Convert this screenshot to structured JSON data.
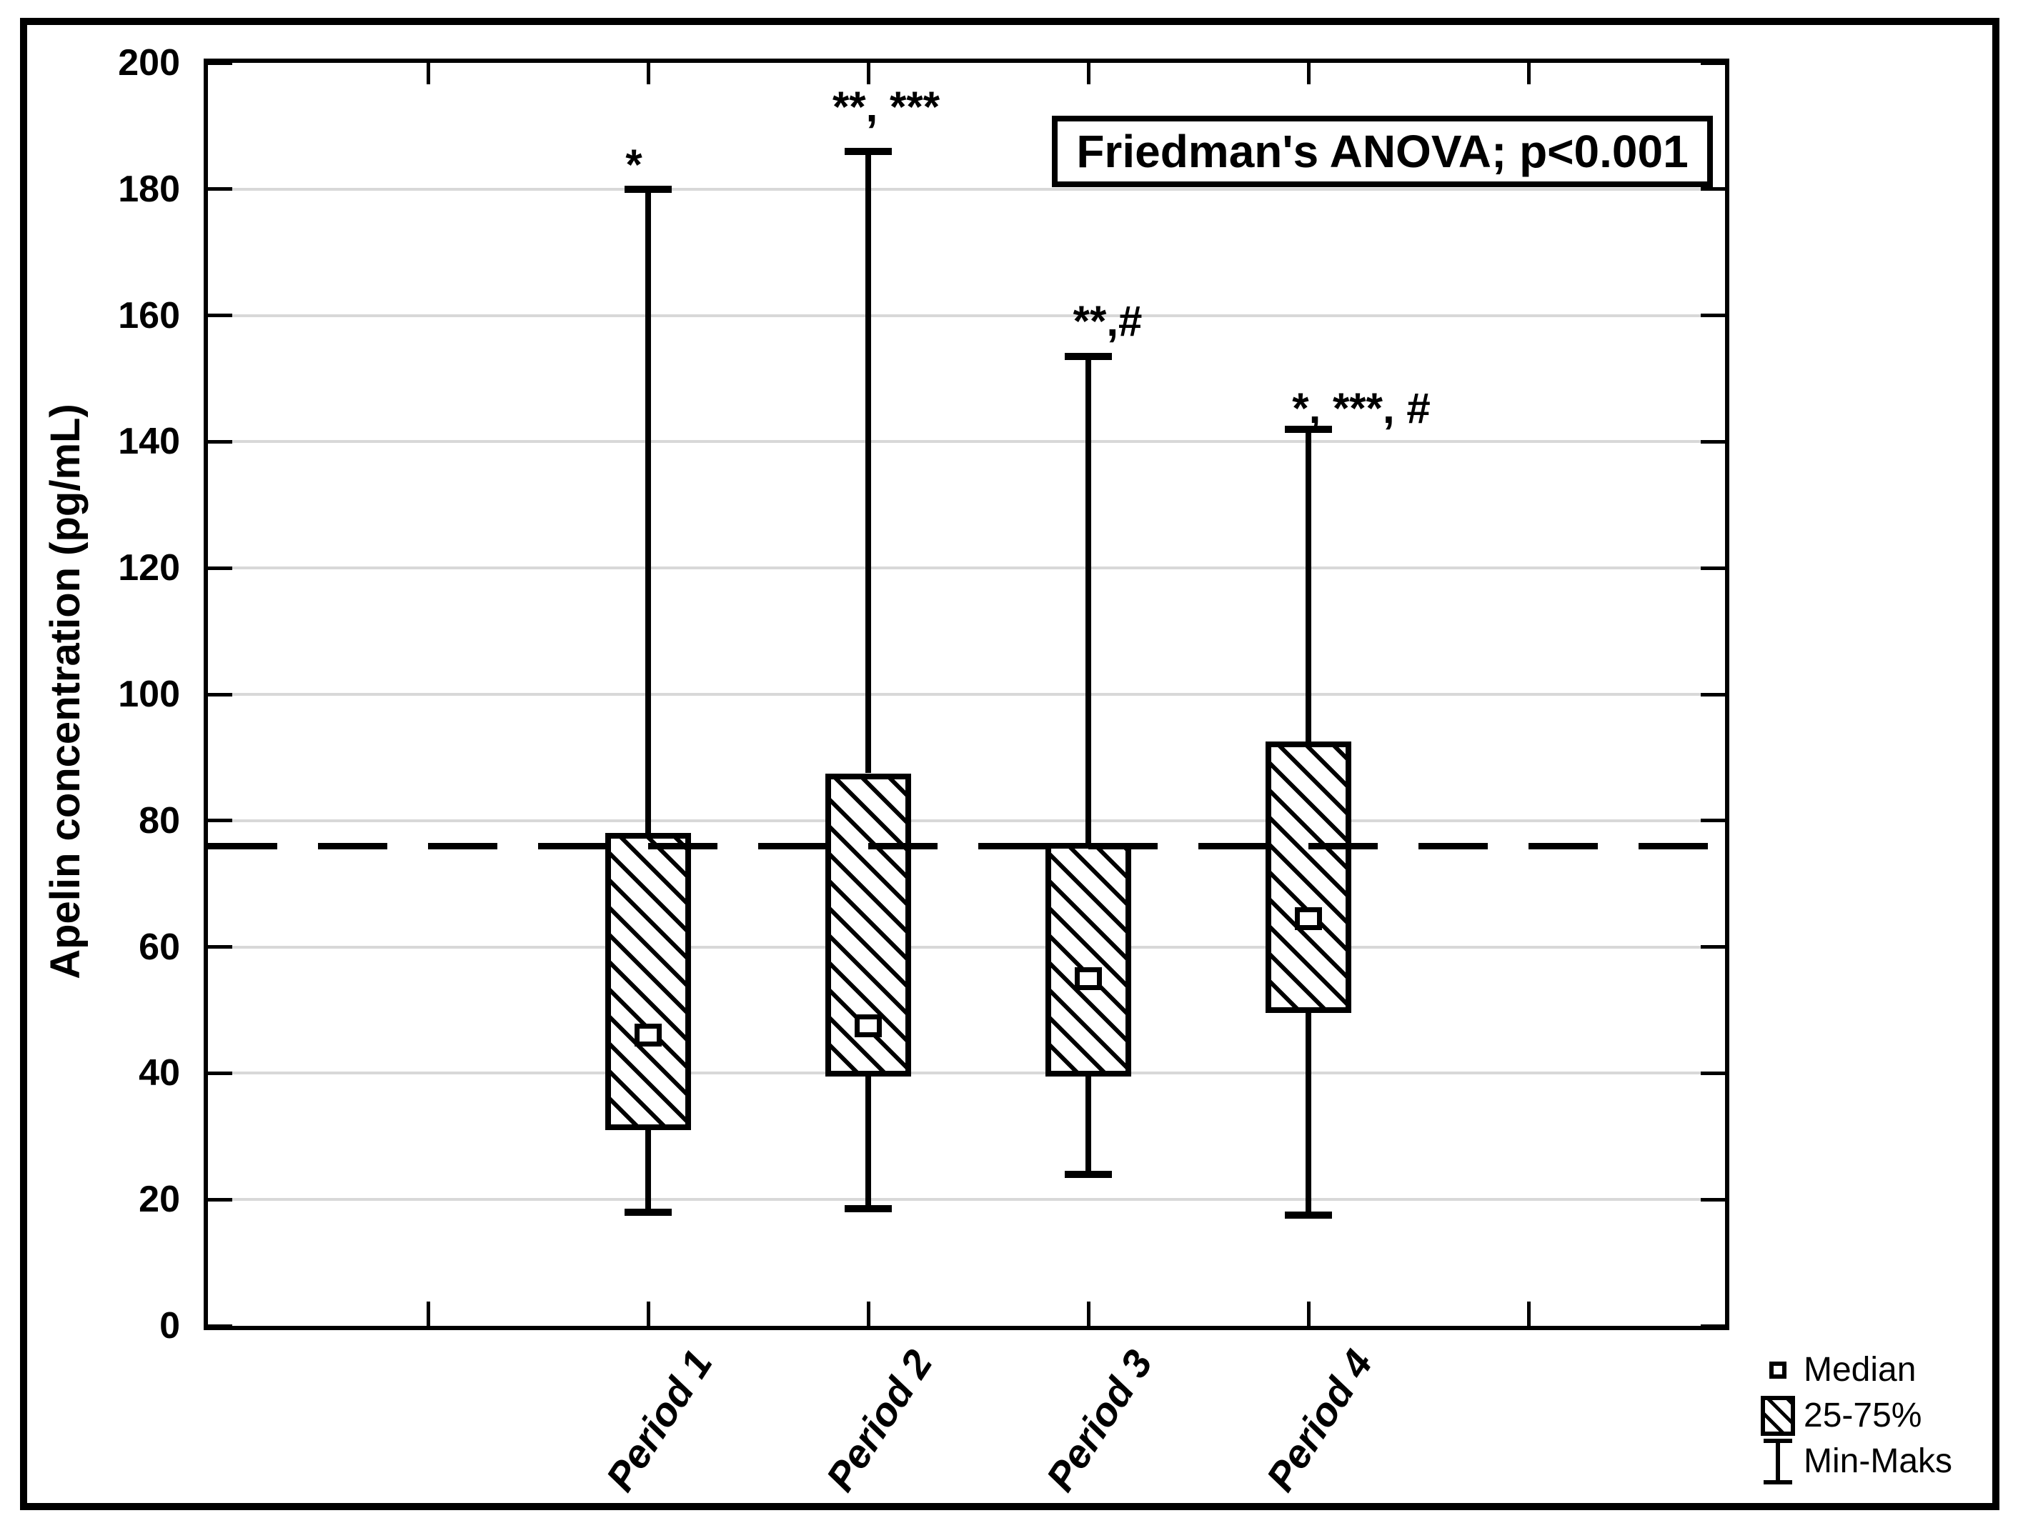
{
  "figure": {
    "stats_box": "Friedman's ANOVA; p<0.001"
  },
  "y_axis": {
    "label": "Apelin concentration (pg/mL)",
    "tick_labels": [
      "0",
      "20",
      "40",
      "60",
      "80",
      "100",
      "120",
      "140",
      "160",
      "180",
      "200"
    ]
  },
  "x_axis": {
    "categories": [
      "Period 1",
      "Period 2",
      "Period 3",
      "Period 4"
    ]
  },
  "legend": {
    "items": [
      {
        "icon": "median-square-icon",
        "label": "Median"
      },
      {
        "icon": "hatched-box-icon",
        "label": "25-75%"
      },
      {
        "icon": "min-max-whisker-icon",
        "label": "Min-Maks"
      }
    ]
  },
  "chart_data": {
    "type": "box",
    "ylabel": "Apelin concentration (pg/mL)",
    "ylim": [
      0,
      200
    ],
    "y_tick_step": 20,
    "grid": true,
    "legend_position": "bottom-right",
    "annotation_box": "Friedman's ANOVA; p<0.001",
    "reference_line": {
      "style": "dashed",
      "value": 76
    },
    "categories": [
      "Period 1",
      "Period 2",
      "Period 3",
      "Period 4"
    ],
    "series": [
      {
        "name": "Period 1",
        "min": 18,
        "q1": 31,
        "median": 46,
        "q3": 78,
        "max": 180,
        "significance": "*"
      },
      {
        "name": "Period 2",
        "min": 18.5,
        "q1": 39.5,
        "median": 47.5,
        "q3": 87.5,
        "max": 186,
        "significance": "**, ***"
      },
      {
        "name": "Period 3",
        "min": 24,
        "q1": 39.5,
        "median": 55,
        "q3": 76.5,
        "max": 153.5,
        "significance": "**,#"
      },
      {
        "name": "Period 4",
        "min": 17.5,
        "q1": 49.5,
        "median": 64.5,
        "q3": 92.5,
        "max": 142,
        "significance": "*, ***, #"
      }
    ]
  }
}
